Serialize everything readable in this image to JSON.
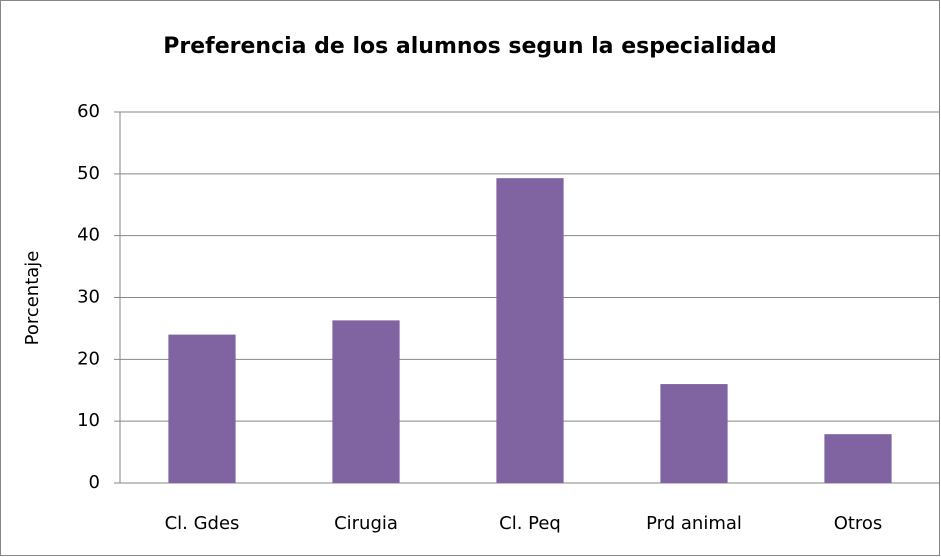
{
  "chart_data": {
    "type": "bar",
    "title": "Preferencia de los alumnos segun la especialidad",
    "ylabel": "Porcentaje",
    "categories": [
      "Cl. Gdes",
      "Cirugia",
      "Cl. Peq",
      "Prd animal",
      "Otros"
    ],
    "values": [
      24,
      26.3,
      49.3,
      16,
      7.9
    ],
    "color": "#8064a2",
    "ylim": [
      0,
      60
    ],
    "yticks": [
      0,
      10,
      20,
      30,
      40,
      50,
      60
    ],
    "grid": true
  }
}
